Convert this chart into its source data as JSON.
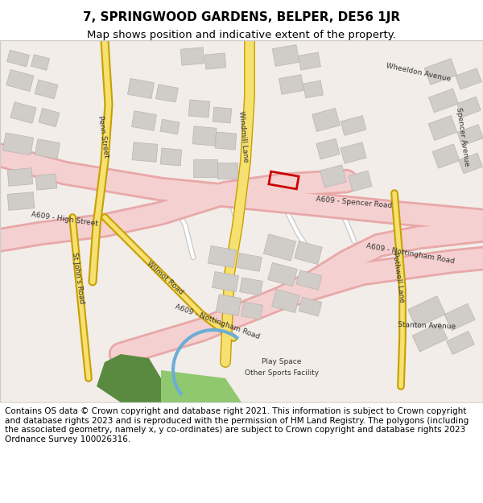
{
  "title": "7, SPRINGWOOD GARDENS, BELPER, DE56 1JR",
  "subtitle": "Map shows position and indicative extent of the property.",
  "footer": "Contains OS data © Crown copyright and database right 2021. This information is subject to Crown copyright and database rights 2023 and is reproduced with the permission of HM Land Registry. The polygons (including the associated geometry, namely x, y co-ordinates) are subject to Crown copyright and database rights 2023 Ordnance Survey 100026316.",
  "title_fontsize": 11,
  "subtitle_fontsize": 9.5,
  "footer_fontsize": 7.5,
  "fig_width": 6.0,
  "fig_height": 6.25,
  "map_bg": "#f5f5f5",
  "road_major_color": "#f0c0c0",
  "road_minor_color": "#ffffff",
  "road_yellow_color": "#f5d87a",
  "building_color": "#d8d8d8",
  "building_edge": "#b0b0b0",
  "plot_rect_color": "#cc0000",
  "green_area_color": "#6aa84f",
  "light_green_color": "#c6e2b0",
  "water_color": "#6baed6",
  "footer_bg": "#ffffff",
  "header_bg": "#ffffff"
}
